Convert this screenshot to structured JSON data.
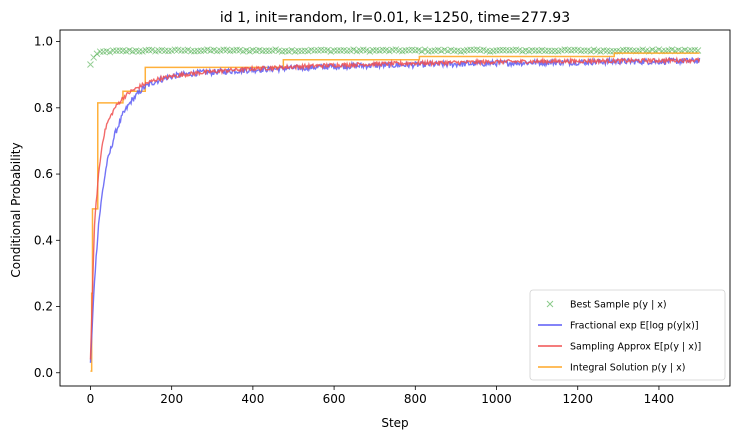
{
  "chart_data": {
    "type": "line",
    "title": "id 1, init=random, lr=0.01, k=1250, time=277.93",
    "xlabel": "Step",
    "ylabel": "Conditional Probability",
    "xlim": [
      -75,
      1575
    ],
    "ylim": [
      -0.04,
      1.035
    ],
    "xticks": [
      0,
      200,
      400,
      600,
      800,
      1000,
      1200,
      1400
    ],
    "yticks": [
      0.0,
      0.2,
      0.4,
      0.6,
      0.8,
      1.0
    ],
    "xtick_labels": [
      "0",
      "200",
      "400",
      "600",
      "800",
      "1000",
      "1200",
      "1400"
    ],
    "ytick_labels": [
      "0.0",
      "0.2",
      "0.4",
      "0.6",
      "0.8",
      "1.0"
    ],
    "grid": false,
    "legend_position": "lower-right",
    "series": [
      {
        "name": "Best Sample p(y | x)",
        "style": "markers",
        "marker": "x",
        "color": "#2ca02c",
        "x": [
          0,
          3,
          6,
          9,
          12,
          15,
          20,
          25,
          30,
          40,
          50,
          60,
          75,
          90,
          110,
          130,
          160,
          200,
          300,
          400,
          600,
          800,
          1000,
          1200,
          1400,
          1500
        ],
        "y": [
          0.93,
          0.94,
          0.95,
          0.955,
          0.96,
          0.962,
          0.965,
          0.967,
          0.968,
          0.97,
          0.97,
          0.971,
          0.971,
          0.972,
          0.972,
          0.972,
          0.973,
          0.973,
          0.973,
          0.973,
          0.973,
          0.973,
          0.973,
          0.973,
          0.973,
          0.973
        ]
      },
      {
        "name": "Fractional exp E[log p(y|x)]",
        "style": "line",
        "color": "#5a5af5",
        "x": [
          0,
          10,
          20,
          30,
          40,
          60,
          80,
          100,
          130,
          160,
          200,
          260,
          330,
          400,
          500,
          600,
          700,
          800,
          900,
          1000,
          1100,
          1200,
          1300,
          1400,
          1500
        ],
        "y": [
          0.03,
          0.28,
          0.45,
          0.55,
          0.63,
          0.72,
          0.78,
          0.82,
          0.86,
          0.88,
          0.895,
          0.905,
          0.91,
          0.915,
          0.92,
          0.925,
          0.928,
          0.93,
          0.932,
          0.935,
          0.937,
          0.938,
          0.94,
          0.94,
          0.942
        ]
      },
      {
        "name": "Sampling Approx E[p(y | x)]",
        "style": "line",
        "color": "#f05050",
        "x": [
          0,
          10,
          20,
          30,
          40,
          60,
          80,
          100,
          130,
          160,
          200,
          260,
          330,
          400,
          500,
          600,
          700,
          800,
          900,
          1000,
          1100,
          1200,
          1300,
          1400,
          1500
        ],
        "y": [
          0.04,
          0.45,
          0.6,
          0.7,
          0.75,
          0.8,
          0.83,
          0.85,
          0.87,
          0.885,
          0.895,
          0.905,
          0.912,
          0.918,
          0.924,
          0.929,
          0.932,
          0.935,
          0.937,
          0.939,
          0.94,
          0.941,
          0.942,
          0.943,
          0.944
        ]
      },
      {
        "name": "Integral Solution p(y | x)",
        "style": "step",
        "color": "#ffa726",
        "x": [
          0,
          3,
          5,
          15,
          18,
          75,
          80,
          130,
          135,
          475,
          810,
          1290,
          1500
        ],
        "y": [
          0.005,
          0.24,
          0.495,
          0.495,
          0.815,
          0.815,
          0.85,
          0.85,
          0.922,
          0.945,
          0.955,
          0.965,
          0.965
        ]
      }
    ]
  }
}
